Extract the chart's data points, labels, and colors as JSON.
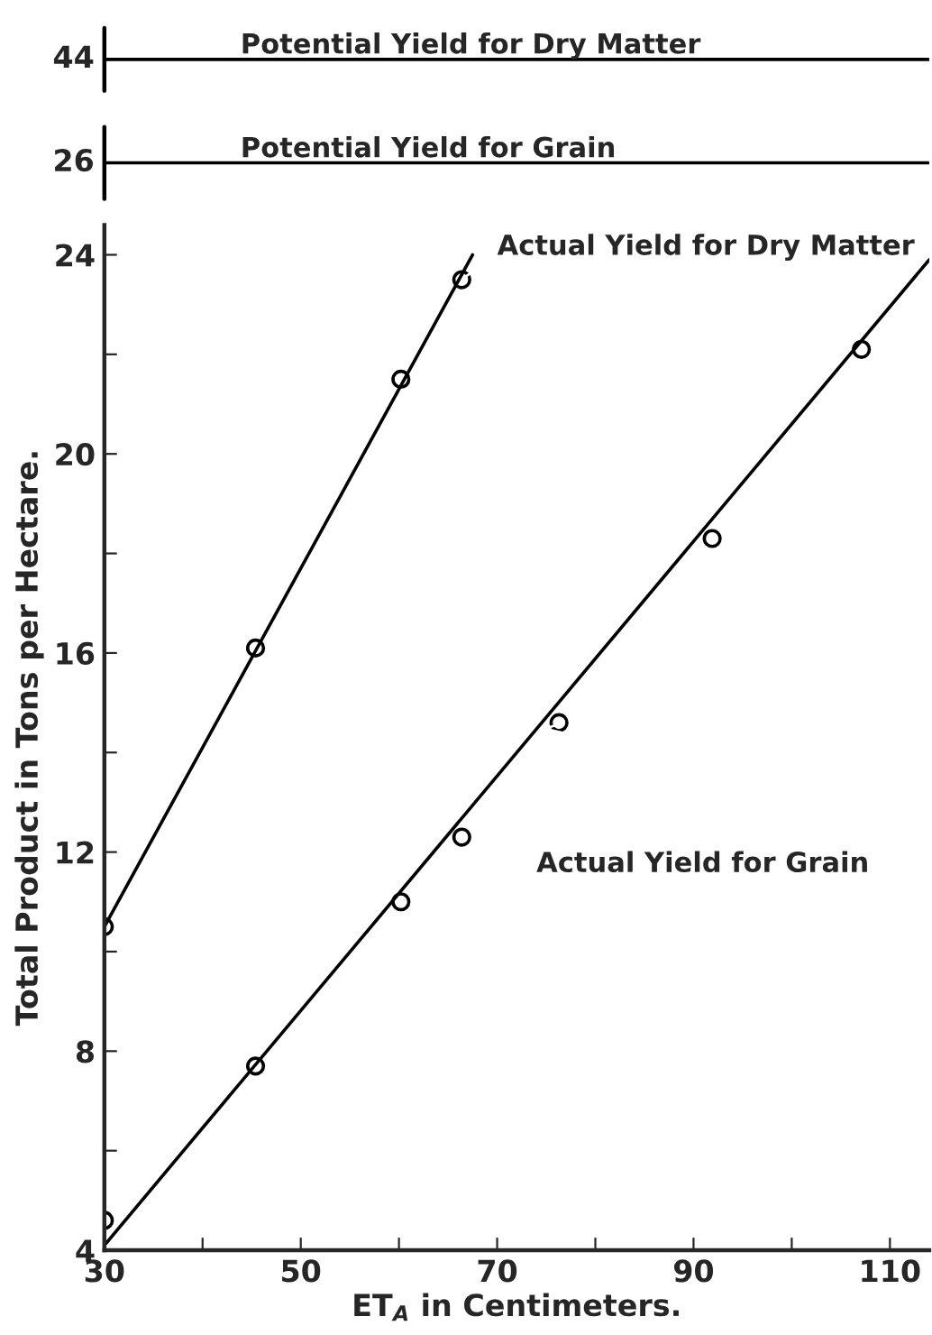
{
  "chart_data": [
    {
      "type": "other",
      "annotations": [
        "44",
        "Potential Yield for Dry Matter"
      ]
    },
    {
      "type": "other",
      "annotations": [
        "26",
        "Potential Yield for Grain"
      ]
    },
    {
      "type": "scatter",
      "xlabel": "ET$_{A}$ in Centimeters.",
      "ylabel": "Total Product in Tons per Hectare.",
      "xlim": [
        30,
        114
      ],
      "ylim": [
        4,
        24.6
      ],
      "xticks": [
        30,
        {
          "value": 40,
          "label": null
        },
        50,
        {
          "value": 60,
          "label": null
        },
        70,
        {
          "value": 80,
          "label": null
        },
        90,
        {
          "value": 100,
          "label": null
        },
        110
      ],
      "yticks": [
        4,
        {
          "value": 6,
          "label": null
        },
        8,
        {
          "value": 10,
          "label": null
        },
        12,
        {
          "value": 14,
          "label": null
        },
        16,
        {
          "value": 18,
          "label": null
        },
        20,
        {
          "value": 22,
          "label": null
        },
        24
      ],
      "grid": false,
      "marker": "circle",
      "series": [
        {
          "color": "#000000",
          "x": [
            30,
            45.4,
            60.2,
            66.4
          ],
          "values": [
            10.5,
            16.1,
            21.5,
            23.5
          ]
        },
        {
          "color": "#000000",
          "x": [
            30,
            45.4,
            60.2,
            66.4,
            76.3,
            91.9,
            107.1
          ],
          "values": [
            4.6,
            7.7,
            11.0,
            12.3,
            14.6,
            18.3,
            22.1
          ]
        },
        {
          "type": "line",
          "color": "#000000",
          "marker": "none",
          "x": [
            30,
            67.5
          ],
          "values": [
            10.5,
            24.0
          ]
        },
        {
          "type": "line",
          "color": "#000000",
          "marker": "none",
          "x": [
            30,
            114
          ],
          "values": [
            4.1,
            23.9
          ]
        }
      ],
      "annotations": [
        {
          "text": "Actual Yield for Dry Matter",
          "x": 66.4,
          "y": 23.5
        },
        {
          "text": "Actual Yield for Grain",
          "x": 74,
          "y": 14.5
        }
      ]
    }
  ]
}
